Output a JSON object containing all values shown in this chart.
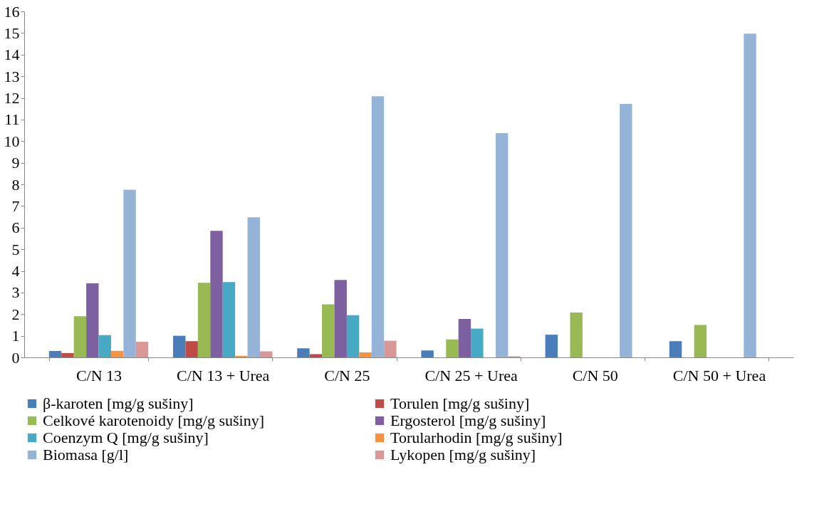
{
  "chart_data": {
    "type": "bar",
    "categories": [
      "C/N 13",
      "C/N 13 + Urea",
      "C/N 25",
      "C/N 25 + Urea",
      "C/N 50",
      "C/N 50 + Urea"
    ],
    "series": [
      {
        "name": "β-karoten [mg/g sušiny]",
        "color": "#4a7ebb",
        "values": [
          0.3,
          1.0,
          0.42,
          0.32,
          1.05,
          0.75
        ]
      },
      {
        "name": "Torulen [mg/g sušiny]",
        "color": "#be4b48",
        "values": [
          0.2,
          0.75,
          0.15,
          0,
          0,
          0
        ]
      },
      {
        "name": "Celkové karotenoidy [mg/g sušiny]",
        "color": "#98b954",
        "values": [
          1.9,
          3.45,
          2.45,
          0.83,
          2.07,
          1.5
        ]
      },
      {
        "name": "Ergosterol [mg/g sušiny]",
        "color": "#7d60a0",
        "values": [
          3.42,
          5.85,
          3.58,
          1.78,
          0,
          0
        ]
      },
      {
        "name": "Coenzym Q [mg/g sušiny]",
        "color": "#46aac5",
        "values": [
          1.03,
          3.48,
          1.95,
          1.33,
          0,
          0
        ]
      },
      {
        "name": "Torularhodin [mg/g sušiny]",
        "color": "#f69240",
        "values": [
          0.3,
          0.07,
          0.23,
          0,
          0,
          0
        ]
      },
      {
        "name": "Biomasa [g/l]",
        "color": "#95b3d7",
        "values": [
          7.75,
          6.48,
          12.07,
          10.37,
          11.72,
          14.97
        ]
      },
      {
        "name": "Lykopen [mg/g sušiny]",
        "color": "#d99795",
        "values": [
          0.72,
          0.28,
          0.77,
          0.05,
          0,
          0
        ]
      }
    ],
    "ylim": [
      0,
      16
    ],
    "yticks": [
      0,
      1,
      2,
      3,
      4,
      5,
      6,
      7,
      8,
      9,
      10,
      11,
      12,
      13,
      14,
      15,
      16
    ],
    "grid": false,
    "legend": "bottom"
  }
}
